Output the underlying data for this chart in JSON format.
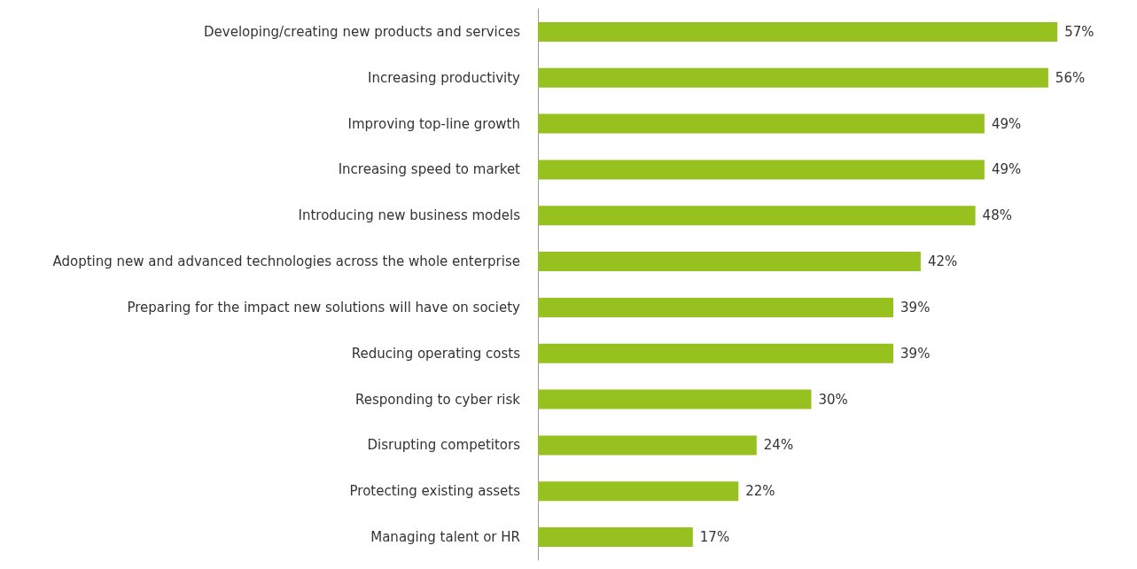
{
  "chart_data": {
    "type": "bar",
    "orientation": "horizontal",
    "categories": [
      "Developing/creating new products and services",
      "Increasing productivity",
      "Improving top-line growth",
      "Increasing speed to market",
      "Introducing new business models",
      "Adopting new and advanced technologies across the whole enterprise",
      "Preparing for the impact new solutions will have on society",
      "Reducing operating costs",
      "Responding to cyber risk",
      "Disrupting competitors",
      "Protecting existing assets",
      "Managing talent or HR"
    ],
    "values": [
      57,
      56,
      49,
      49,
      48,
      42,
      39,
      39,
      30,
      24,
      22,
      17
    ],
    "value_labels": [
      "57%",
      "56%",
      "49%",
      "49%",
      "48%",
      "42%",
      "39%",
      "39%",
      "30%",
      "24%",
      "22%",
      "17%"
    ],
    "color": "#97c11f",
    "grid": false
  }
}
